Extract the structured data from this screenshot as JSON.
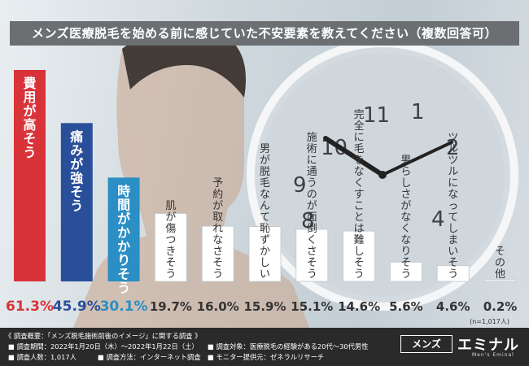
{
  "title": "メンズ医療脱毛を始める前に感じていた不安要素を教えてください（複数回答可）",
  "chart_data": {
    "type": "bar",
    "title": "メンズ医療脱毛を始める前に感じていた不安要素を教えてください（複数回答可）",
    "categories": [
      "費用が高そう",
      "痛みが強そう",
      "時間がかかりそう",
      "肌が傷つきそう",
      "予約が取れなさそう",
      "男が脱毛なんて恥ずかしい",
      "施術に通うのが面倒くさそう",
      "完全に毛をなくすことは難しそう",
      "男らしさがなくなりそう",
      "ツルツルになってしまいそう",
      "その他"
    ],
    "values": [
      61.3,
      45.9,
      30.1,
      19.7,
      16.0,
      15.9,
      15.1,
      14.6,
      5.6,
      4.6,
      0.2
    ],
    "value_labels": [
      "61.3%",
      "45.9%",
      "30.1%",
      "19.7%",
      "16.0%",
      "15.9%",
      "15.1%",
      "14.6%",
      "5.6%",
      "4.6%",
      "0.2%"
    ],
    "ylim": [
      0,
      61.3
    ],
    "sample_note": "(n=1,017人)",
    "colors": [
      "#d9333a",
      "#2a4f9a",
      "#2b8ec4",
      "#ffffff",
      "#ffffff",
      "#ffffff",
      "#ffffff",
      "#ffffff",
      "#ffffff",
      "#ffffff",
      "#ffffff"
    ],
    "text_colors": [
      "#ffffff",
      "#ffffff",
      "#ffffff",
      "#333333",
      "#333333",
      "#333333",
      "#333333",
      "#333333",
      "#333333",
      "#333333",
      "#333333"
    ],
    "value_colors": [
      "#d9333a",
      "#2a4f9a",
      "#2b8ec4",
      "#333333",
      "#333333",
      "#333333",
      "#333333",
      "#333333",
      "#333333",
      "#333333",
      "#333333"
    ]
  },
  "footer": {
    "overview": "《 調査概要：「メンズ脱毛施術前後のイメージ」に関する調査 》",
    "period": "■ 調査期間：2022年1月20日（木）〜2022年1月22日（土）",
    "count": "■ 調査人数：1,017人",
    "method": "■ 調査方法：インターネット調査",
    "target": "■ 調査対象：医療脱毛の経験がある20代〜30代男性",
    "provider": "■ モニター提供元：ゼネラルリサーチ"
  },
  "logo": {
    "box": "メンズ",
    "main": "エミナル",
    "sub": "Men's Eminal"
  }
}
